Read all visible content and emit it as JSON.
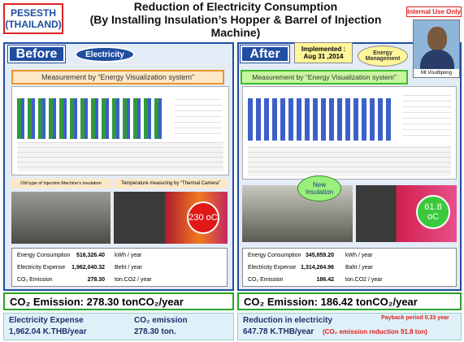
{
  "header": {
    "org": "PESESTH",
    "country": "(THAILAND)",
    "title_line1": "Reduction of Electricity Consumption",
    "title_line2": "(By Installing Insulation’s Hopper & Barrel of Injection Machine)",
    "badge": "Internal Use Only",
    "person": "Mr.Visuttipong"
  },
  "before": {
    "label": "Before",
    "tag": "Electricity",
    "measurement": "Measurement by “Energy Visualization system”",
    "photo_caption1": "Old type of Injection Machine’s insulation",
    "photo_caption2": "Temperature measuring by “Thermal Camera”",
    "temperature": "230 oC",
    "table": {
      "rows": [
        [
          "Energy Consumption",
          "516,326.40",
          "kWh / year"
        ],
        [
          "Electricity Expense",
          "1,962,040.32",
          "Beht / year"
        ],
        [
          "CO₂ Emission",
          "278.30",
          "ton.CO2 / year"
        ]
      ]
    },
    "emission_bar": "CO₂ Emission:  278.30 tonCO₂/year",
    "summary": {
      "expense_title": "Electricity Expense",
      "expense_value": "1,962.04   K.THB/year",
      "co2_title": "CO₂ emission",
      "co2_value": "278.30 ton."
    }
  },
  "after": {
    "label": "After",
    "implemented": "Implemented :\nAug 31 ,2014",
    "tag": "Energy Management",
    "measurement": "Measurement by “Energy Visualization system”",
    "callout": "New Insulation",
    "temperature": "61.8 oC",
    "table": {
      "rows": [
        [
          "Energy Consumption",
          "345,859.20",
          "kWh / year"
        ],
        [
          "Electricity Expense",
          "1,314,264.96",
          "Baht / year"
        ],
        [
          "CO₂ Emission",
          "186.42",
          "ton.CO2 / year"
        ]
      ]
    },
    "emission_bar": "CO₂ Emission:  186.42 tonCO₂/year",
    "summary": {
      "title": "Reduction in electricity",
      "value": "647.78 K.THB/year",
      "payback": "Payback period  0.33 year",
      "co2_reduction": "(CO₂ emission reduction 91.8 ton)"
    }
  }
}
